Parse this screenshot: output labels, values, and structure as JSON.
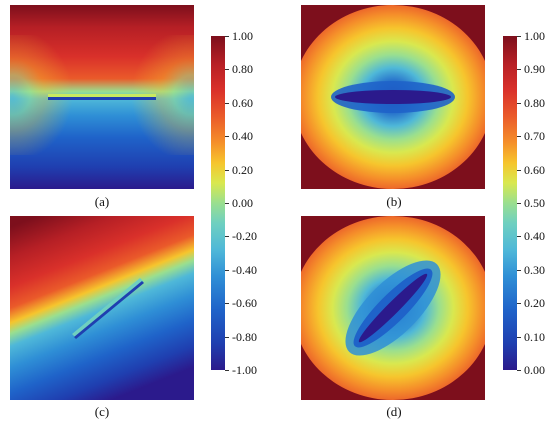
{
  "panels": [
    {
      "id": "a",
      "caption": "(a)"
    },
    {
      "id": "b",
      "caption": "(b)"
    },
    {
      "id": "c",
      "caption": "(c)"
    },
    {
      "id": "d",
      "caption": "(d)"
    }
  ],
  "colorbar_left": {
    "ticks": [
      "1.00",
      "0.80",
      "0.60",
      "0.40",
      "0.20",
      "0.00",
      "-0.20",
      "-0.40",
      "-0.60",
      "-0.80",
      "-1.00"
    ]
  },
  "colorbar_right": {
    "ticks": [
      "1.00",
      "0.90",
      "0.80",
      "0.70",
      "0.60",
      "0.50",
      "0.40",
      "0.30",
      "0.20",
      "0.10",
      "0.00"
    ]
  },
  "colors": {
    "palette": [
      "#2b1a8c",
      "#1f3fb0",
      "#1f63c9",
      "#2f8fd6",
      "#4fb8d8",
      "#6fd0c0",
      "#9adf8f",
      "#d9e84f",
      "#f6c52d",
      "#f5902a",
      "#ea5a2a",
      "#d9302a",
      "#b51f25",
      "#7d0f1c"
    ]
  }
}
